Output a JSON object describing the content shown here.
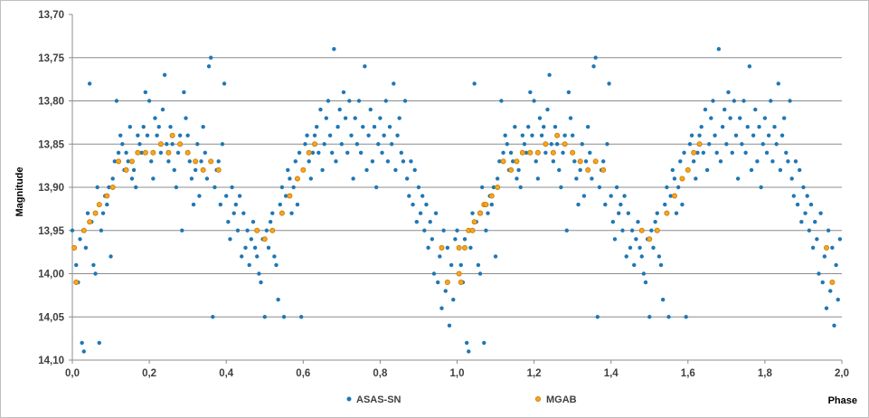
{
  "chart_data": {
    "type": "scatter",
    "title": "",
    "xlabel": "Phase",
    "ylabel": "Magnitude",
    "xlim": [
      0.0,
      2.0
    ],
    "ylim": [
      13.7,
      14.1
    ],
    "y_reversed": true,
    "grid": "horizontal",
    "legend_position": "bottom",
    "x_ticks": [
      "0,0",
      "0,2",
      "0,4",
      "0,6",
      "0,8",
      "1,0",
      "1,2",
      "1,4",
      "1,6",
      "1,8",
      "2,0"
    ],
    "y_ticks": [
      "13,70",
      "13,75",
      "13,80",
      "13,85",
      "13,90",
      "13,95",
      "14,00",
      "14,05",
      "14,10"
    ],
    "series": [
      {
        "name": "ASAS-SN",
        "color": "#1f77b4",
        "marker": "dot",
        "note_repeat": "points are shown for phase 0-1 and repeated at phase 1-2",
        "points": [
          [
            0.0,
            13.95
          ],
          [
            0.01,
            13.99
          ],
          [
            0.015,
            14.01
          ],
          [
            0.02,
            13.96
          ],
          [
            0.025,
            14.08
          ],
          [
            0.03,
            14.09
          ],
          [
            0.035,
            13.97
          ],
          [
            0.04,
            13.93
          ],
          [
            0.045,
            13.78
          ],
          [
            0.05,
            13.94
          ],
          [
            0.055,
            13.99
          ],
          [
            0.06,
            14.0
          ],
          [
            0.065,
            13.9
          ],
          [
            0.07,
            14.08
          ],
          [
            0.075,
            13.95
          ],
          [
            0.08,
            13.93
          ],
          [
            0.085,
            13.91
          ],
          [
            0.09,
            13.92
          ],
          [
            0.095,
            13.9
          ],
          [
            0.1,
            13.98
          ],
          [
            0.105,
            13.89
          ],
          [
            0.11,
            13.87
          ],
          [
            0.115,
            13.8
          ],
          [
            0.12,
            13.86
          ],
          [
            0.125,
            13.84
          ],
          [
            0.13,
            13.85
          ],
          [
            0.135,
            13.88
          ],
          [
            0.14,
            13.86
          ],
          [
            0.145,
            13.87
          ],
          [
            0.15,
            13.83
          ],
          [
            0.155,
            13.89
          ],
          [
            0.16,
            13.88
          ],
          [
            0.165,
            13.9
          ],
          [
            0.17,
            13.84
          ],
          [
            0.175,
            13.85
          ],
          [
            0.18,
            13.86
          ],
          [
            0.185,
            13.83
          ],
          [
            0.19,
            13.79
          ],
          [
            0.195,
            13.84
          ],
          [
            0.2,
            13.8
          ],
          [
            0.205,
            13.87
          ],
          [
            0.21,
            13.89
          ],
          [
            0.215,
            13.82
          ],
          [
            0.22,
            13.84
          ],
          [
            0.225,
            13.83
          ],
          [
            0.23,
            13.86
          ],
          [
            0.235,
            13.81
          ],
          [
            0.24,
            13.77
          ],
          [
            0.245,
            13.85
          ],
          [
            0.25,
            13.87
          ],
          [
            0.255,
            13.83
          ],
          [
            0.26,
            13.85
          ],
          [
            0.265,
            13.88
          ],
          [
            0.27,
            13.9
          ],
          [
            0.275,
            13.86
          ],
          [
            0.28,
            13.84
          ],
          [
            0.285,
            13.95
          ],
          [
            0.29,
            13.79
          ],
          [
            0.295,
            13.82
          ],
          [
            0.3,
            13.84
          ],
          [
            0.305,
            13.87
          ],
          [
            0.31,
            13.89
          ],
          [
            0.315,
            13.92
          ],
          [
            0.32,
            13.88
          ],
          [
            0.325,
            13.85
          ],
          [
            0.33,
            13.91
          ],
          [
            0.335,
            13.87
          ],
          [
            0.34,
            13.83
          ],
          [
            0.345,
            13.86
          ],
          [
            0.35,
            13.89
          ],
          [
            0.355,
            13.76
          ],
          [
            0.36,
            13.75
          ],
          [
            0.365,
            14.05
          ],
          [
            0.37,
            13.9
          ],
          [
            0.375,
            13.88
          ],
          [
            0.38,
            13.87
          ],
          [
            0.385,
            13.92
          ],
          [
            0.39,
            13.85
          ],
          [
            0.395,
            13.78
          ],
          [
            0.4,
            13.91
          ],
          [
            0.405,
            13.94
          ],
          [
            0.41,
            13.96
          ],
          [
            0.415,
            13.9
          ],
          [
            0.42,
            13.93
          ],
          [
            0.425,
            13.92
          ],
          [
            0.43,
            13.95
          ],
          [
            0.435,
            13.91
          ],
          [
            0.44,
            13.98
          ],
          [
            0.445,
            13.93
          ],
          [
            0.45,
            13.97
          ],
          [
            0.455,
            13.95
          ],
          [
            0.46,
            13.99
          ],
          [
            0.465,
            13.96
          ],
          [
            0.47,
            13.94
          ],
          [
            0.475,
            13.97
          ],
          [
            0.48,
            13.98
          ],
          [
            0.485,
            14.0
          ],
          [
            0.49,
            14.01
          ],
          [
            0.495,
            13.96
          ],
          [
            0.5,
            14.05
          ],
          [
            0.505,
            13.95
          ],
          [
            0.51,
            13.97
          ],
          [
            0.515,
            13.94
          ],
          [
            0.52,
            13.93
          ],
          [
            0.525,
            13.98
          ],
          [
            0.53,
            13.99
          ],
          [
            0.535,
            14.03
          ],
          [
            0.54,
            13.92
          ],
          [
            0.545,
            13.9
          ],
          [
            0.55,
            14.05
          ],
          [
            0.555,
            13.91
          ],
          [
            0.56,
            13.88
          ],
          [
            0.565,
            13.89
          ],
          [
            0.57,
            13.93
          ],
          [
            0.575,
            13.9
          ],
          [
            0.58,
            13.87
          ],
          [
            0.585,
            13.92
          ],
          [
            0.59,
            13.86
          ],
          [
            0.595,
            14.05
          ],
          [
            0.6,
            13.88
          ],
          [
            0.605,
            13.85
          ],
          [
            0.61,
            13.84
          ],
          [
            0.615,
            13.87
          ],
          [
            0.62,
            13.89
          ],
          [
            0.625,
            13.86
          ],
          [
            0.63,
            13.84
          ],
          [
            0.635,
            13.83
          ],
          [
            0.64,
            13.86
          ],
          [
            0.645,
            13.81
          ],
          [
            0.65,
            13.88
          ],
          [
            0.655,
            13.85
          ],
          [
            0.66,
            13.82
          ],
          [
            0.665,
            13.8
          ],
          [
            0.67,
            13.84
          ],
          [
            0.675,
            13.86
          ],
          [
            0.68,
            13.74
          ],
          [
            0.685,
            13.87
          ],
          [
            0.69,
            13.83
          ],
          [
            0.695,
            13.81
          ],
          [
            0.7,
            13.85
          ],
          [
            0.705,
            13.79
          ],
          [
            0.71,
            13.82
          ],
          [
            0.715,
            13.86
          ],
          [
            0.72,
            13.8
          ],
          [
            0.725,
            13.84
          ],
          [
            0.73,
            13.89
          ],
          [
            0.735,
            13.82
          ],
          [
            0.74,
            13.85
          ],
          [
            0.745,
            13.8
          ],
          [
            0.75,
            13.86
          ],
          [
            0.755,
            13.83
          ],
          [
            0.76,
            13.76
          ],
          [
            0.765,
            13.88
          ],
          [
            0.77,
            13.84
          ],
          [
            0.775,
            13.81
          ],
          [
            0.78,
            13.87
          ],
          [
            0.785,
            13.83
          ],
          [
            0.79,
            13.9
          ],
          [
            0.795,
            13.85
          ],
          [
            0.8,
            13.82
          ],
          [
            0.805,
            13.86
          ],
          [
            0.81,
            13.84
          ],
          [
            0.815,
            13.8
          ],
          [
            0.82,
            13.87
          ],
          [
            0.825,
            13.83
          ],
          [
            0.83,
            13.85
          ],
          [
            0.835,
            13.78
          ],
          [
            0.84,
            13.88
          ],
          [
            0.845,
            13.84
          ],
          [
            0.85,
            13.82
          ],
          [
            0.855,
            13.86
          ],
          [
            0.86,
            13.87
          ],
          [
            0.865,
            13.8
          ],
          [
            0.87,
            13.89
          ],
          [
            0.875,
            13.91
          ],
          [
            0.88,
            13.87
          ],
          [
            0.885,
            13.92
          ],
          [
            0.89,
            13.88
          ],
          [
            0.895,
            13.94
          ],
          [
            0.9,
            13.9
          ],
          [
            0.905,
            13.93
          ],
          [
            0.91,
            13.91
          ],
          [
            0.915,
            13.95
          ],
          [
            0.92,
            13.92
          ],
          [
            0.925,
            13.97
          ],
          [
            0.93,
            13.94
          ],
          [
            0.935,
            13.96
          ],
          [
            0.94,
            14.0
          ],
          [
            0.945,
            13.93
          ],
          [
            0.95,
            14.01
          ],
          [
            0.955,
            13.98
          ],
          [
            0.96,
            14.04
          ],
          [
            0.965,
            13.95
          ],
          [
            0.97,
            14.02
          ],
          [
            0.975,
            13.97
          ],
          [
            0.98,
            14.06
          ],
          [
            0.985,
            13.99
          ],
          [
            0.99,
            14.03
          ],
          [
            0.995,
            13.96
          ]
        ]
      },
      {
        "name": "MGAB",
        "color": "#f5a623",
        "marker": "ring",
        "points": [
          [
            0.005,
            13.97
          ],
          [
            0.01,
            14.01
          ],
          [
            0.03,
            13.95
          ],
          [
            0.045,
            13.94
          ],
          [
            0.06,
            13.93
          ],
          [
            0.07,
            13.92
          ],
          [
            0.09,
            13.91
          ],
          [
            0.105,
            13.9
          ],
          [
            0.12,
            13.87
          ],
          [
            0.14,
            13.88
          ],
          [
            0.155,
            13.87
          ],
          [
            0.17,
            13.86
          ],
          [
            0.19,
            13.86
          ],
          [
            0.21,
            13.86
          ],
          [
            0.23,
            13.85
          ],
          [
            0.25,
            13.86
          ],
          [
            0.26,
            13.84
          ],
          [
            0.28,
            13.85
          ],
          [
            0.3,
            13.86
          ],
          [
            0.32,
            13.87
          ],
          [
            0.34,
            13.88
          ],
          [
            0.36,
            13.87
          ],
          [
            0.38,
            13.88
          ],
          [
            0.48,
            13.95
          ],
          [
            0.5,
            13.96
          ],
          [
            0.52,
            13.95
          ],
          [
            0.545,
            13.93
          ],
          [
            0.565,
            13.91
          ],
          [
            0.585,
            13.89
          ],
          [
            0.6,
            13.88
          ],
          [
            0.615,
            13.86
          ],
          [
            0.63,
            13.85
          ],
          [
            0.96,
            13.97
          ],
          [
            0.975,
            14.01
          ],
          [
            1.005,
            14.0
          ],
          [
            1.02,
            13.97
          ],
          [
            1.04,
            13.95
          ],
          [
            1.06,
            13.93
          ],
          [
            1.075,
            13.92
          ]
        ],
        "note_repeat": "points are shown for phase 0-1 and repeated at phase 1-2"
      }
    ]
  }
}
